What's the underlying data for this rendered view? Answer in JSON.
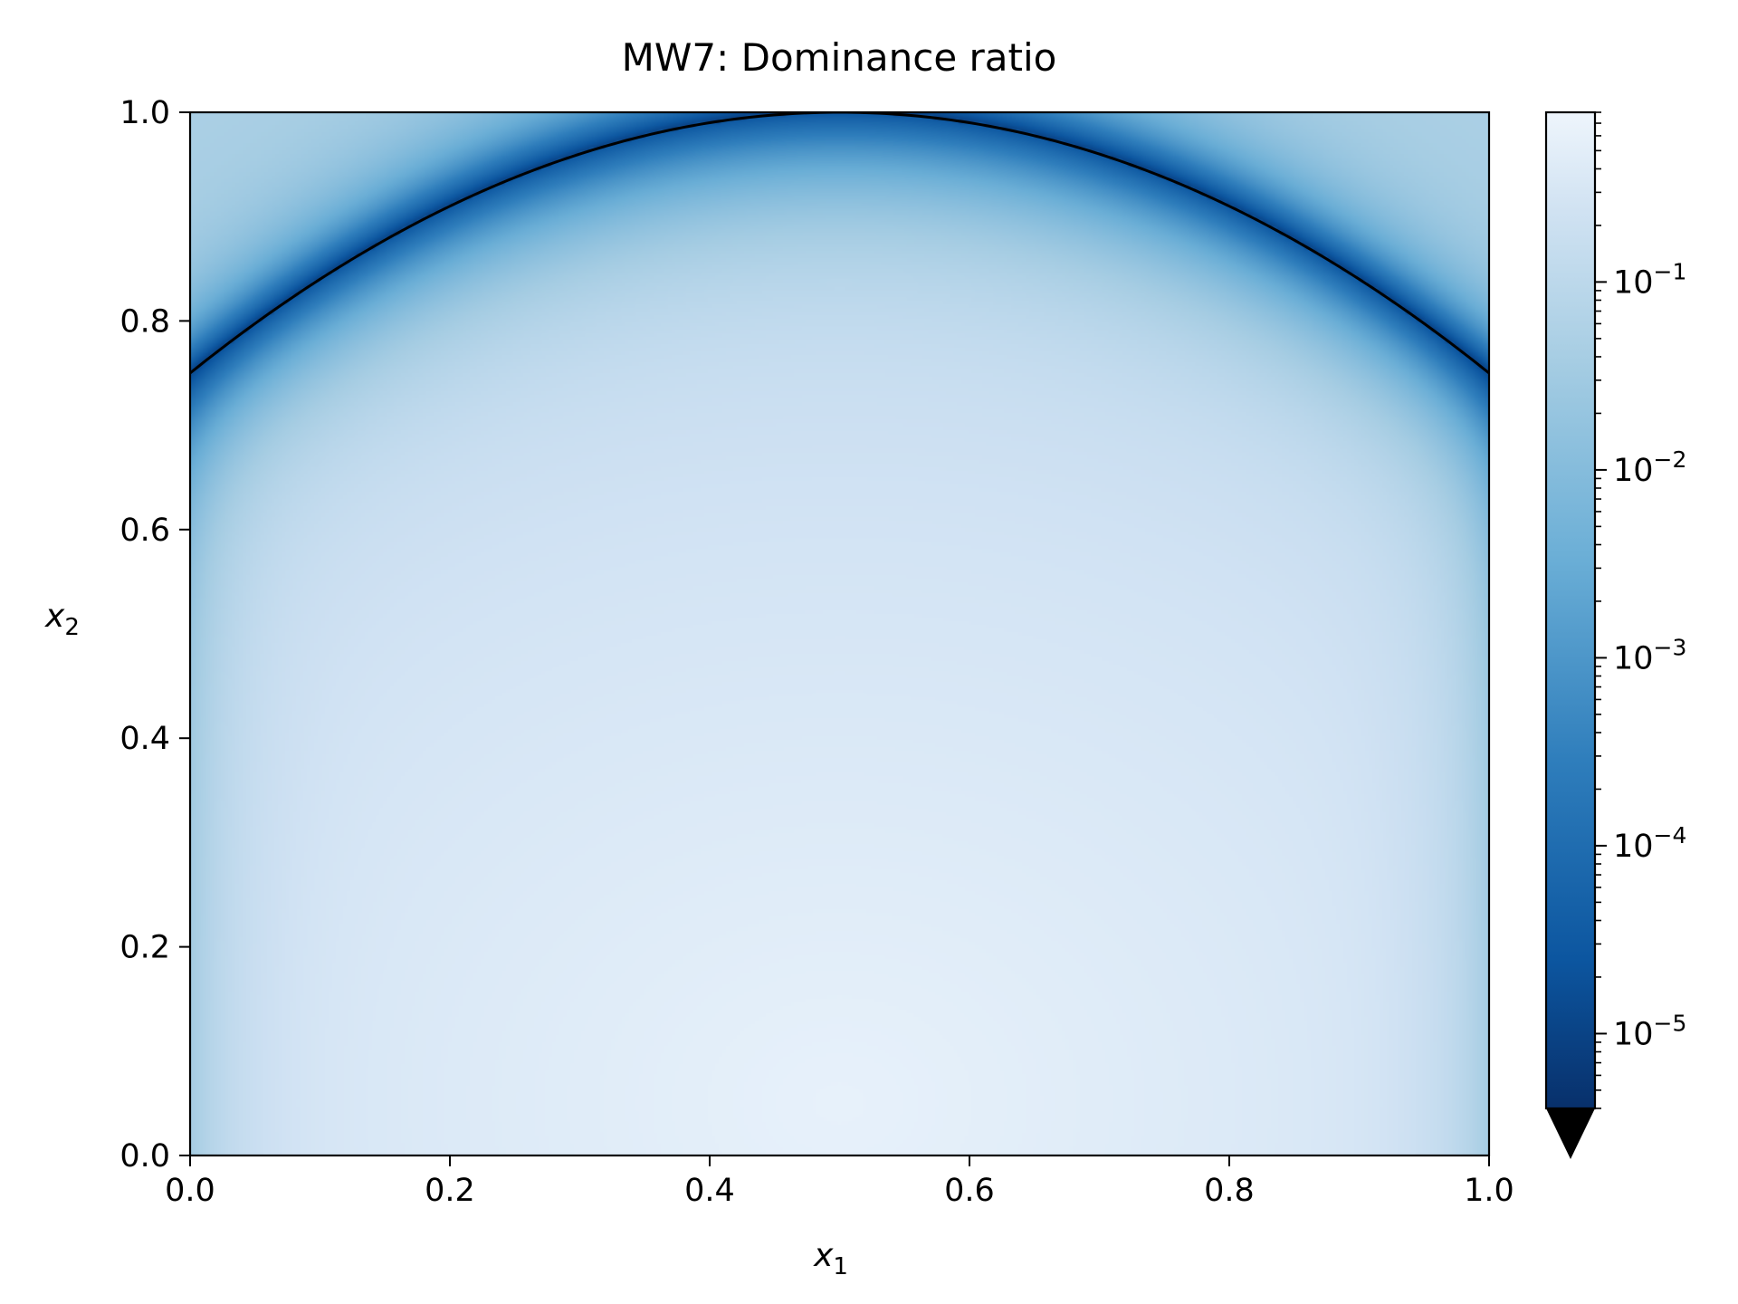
{
  "chart_data": {
    "type": "heatmap",
    "title": "MW7: Dominance ratio",
    "xlabel": {
      "base": "x",
      "sub": "1"
    },
    "ylabel": {
      "base": "x",
      "sub": "2"
    },
    "xlim": [
      0.0,
      1.0
    ],
    "ylim": [
      0.0,
      1.0
    ],
    "x_ticks": [
      "0.0",
      "0.2",
      "0.4",
      "0.6",
      "0.8",
      "1.0"
    ],
    "y_ticks": [
      "0.0",
      "0.2",
      "0.4",
      "0.6",
      "0.8",
      "1.0"
    ],
    "grid": false,
    "colormap": "Blues_r",
    "color_scale": "log",
    "colorbar": {
      "range": [
        4e-06,
        0.8
      ],
      "extend": "min",
      "ticks": [
        {
          "value": 0.1,
          "base": "10",
          "exp": "−1"
        },
        {
          "value": 0.01,
          "base": "10",
          "exp": "−2"
        },
        {
          "value": 0.001,
          "base": "10",
          "exp": "−3"
        },
        {
          "value": 0.0001,
          "base": "10",
          "exp": "−4"
        },
        {
          "value": 1e-05,
          "base": "10",
          "exp": "−5"
        }
      ]
    },
    "boundary_curve": {
      "description_points": [
        [
          0.0,
          0.75
        ],
        [
          0.1,
          0.855
        ],
        [
          0.2,
          0.92
        ],
        [
          0.3,
          0.965
        ],
        [
          0.4,
          0.99
        ],
        [
          0.5,
          1.0
        ],
        [
          0.6,
          0.99
        ],
        [
          0.7,
          0.965
        ],
        [
          0.8,
          0.92
        ],
        [
          0.9,
          0.855
        ],
        [
          1.0,
          0.75
        ]
      ]
    },
    "colors": {
      "darkest": "#08306b",
      "dark": "#08519c",
      "mid": "#6baed6",
      "light": "#c6dbef",
      "lightest": "#f7fbff",
      "frame": "#000000"
    }
  }
}
